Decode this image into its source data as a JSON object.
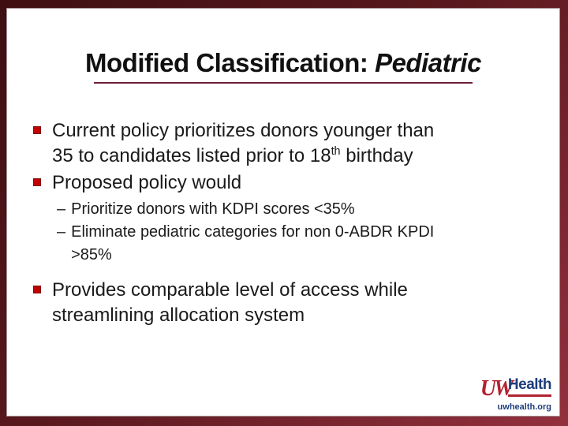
{
  "colors": {
    "frame_dark": "#3e0f12",
    "frame_light": "#93303e",
    "content_bg": "#ffffff",
    "title_text": "#111111",
    "title_underline": "#6e2038",
    "body_text": "#1a1a1a",
    "bullet_red": "#c00000",
    "logo_red": "#b22230",
    "logo_navy": "#1e3d7b"
  },
  "title": {
    "regular": "Modified Classification: ",
    "emphasis": "Pediatric"
  },
  "bullets": {
    "item1": {
      "line1": "Current policy prioritizes donors younger than",
      "line2_pre": "35 to candidates listed prior to 18",
      "line2_sup": "th",
      "line2_post": " birthday"
    },
    "item2": {
      "line1": "Proposed policy would"
    },
    "sub_marker": "–",
    "sub1": {
      "line1": "Prioritize donors with KDPI scores <35%"
    },
    "sub2": {
      "line1": "Eliminate pediatric categories for non 0-ABDR KPDI",
      "line2": ">85%"
    },
    "item3": {
      "line1": "Provides comparable level of access while",
      "line2": "streamlining allocation system"
    }
  },
  "logo": {
    "uw": "UW",
    "health": "Health",
    "url": "uwhealth.org"
  }
}
